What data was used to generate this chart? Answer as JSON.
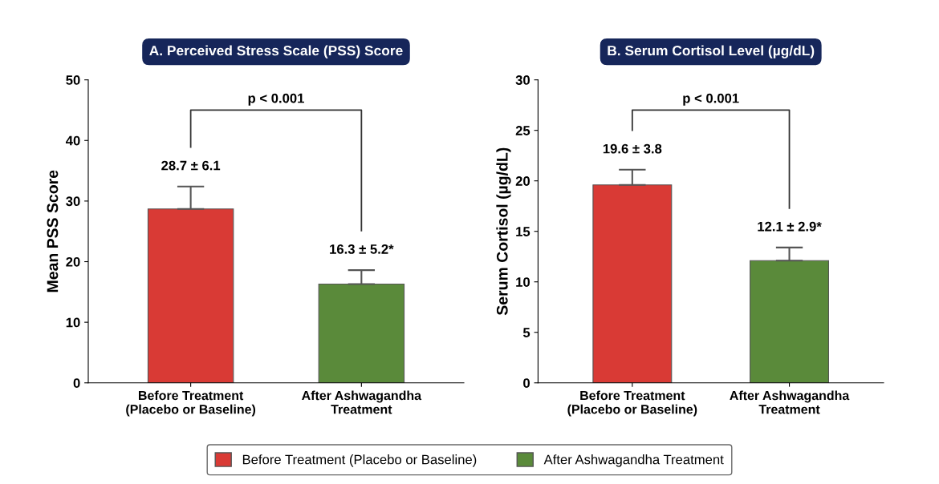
{
  "chart_data": [
    {
      "type": "bar",
      "title": "A. Perceived Stress Scale (PSS) Score",
      "ylabel": "Mean PSS Score",
      "categories": [
        "Before Treatment\n(Placebo or Baseline)",
        "After Ashwagandha\nTreatment"
      ],
      "series": [
        {
          "name": "Before Treatment (Placebo or Baseline)",
          "color": "#d93a35",
          "values": [
            28.7,
            null
          ],
          "errors": [
            [
              28.7,
              32.4
            ],
            null
          ],
          "value_labels": [
            "28.7 ± 6.1",
            null
          ]
        },
        {
          "name": "After Ashwagandha Treatment",
          "color": "#5a8a3a",
          "values": [
            null,
            16.3
          ],
          "errors": [
            null,
            [
              16.3,
              18.6
            ]
          ],
          "value_labels": [
            null,
            "16.3 ± 5.2*"
          ]
        }
      ],
      "ylim": [
        0,
        50
      ],
      "yticks": [
        0,
        10,
        20,
        30,
        40,
        50
      ],
      "annotations": [
        "p < 0.001"
      ],
      "legend": "bottom"
    },
    {
      "type": "bar",
      "title": "B. Serum Cortisol Level (µg/dL)",
      "ylabel": "Serum Cortisol (µg/dL)",
      "categories": [
        "Before Treatment\n(Placebo or Baseline)",
        "After Ashwagandha\nTreatment"
      ],
      "series": [
        {
          "color": "#d93a35",
          "values": [
            19.6,
            null
          ],
          "errors": [
            [
              19.6,
              21.1
            ],
            null
          ],
          "value_labels": [
            "19.6 ± 3.8",
            null
          ]
        },
        {
          "color": "#5a8a3a",
          "values": [
            null,
            12.1
          ],
          "errors": [
            null,
            [
              12.1,
              13.4
            ]
          ],
          "value_labels": [
            null,
            "12.1 ± 2.9*"
          ]
        }
      ],
      "ylim": [
        0,
        30
      ],
      "yticks": [
        0,
        5,
        10,
        15,
        20,
        25,
        30
      ],
      "annotations": [
        "p < 0.001"
      ]
    }
  ]
}
